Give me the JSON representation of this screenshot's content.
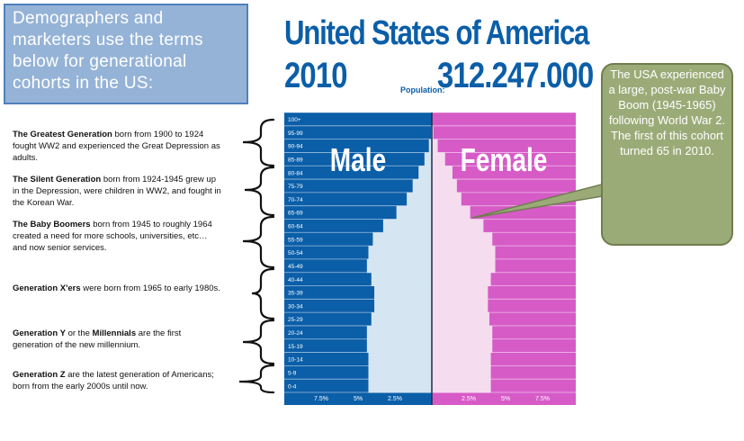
{
  "info_box": {
    "text": "Demographers and marketers use the terms below for generational cohorts in the US:"
  },
  "generations": [
    {
      "name": "The Greatest Generation",
      "desc": " born from 1900 to 1924 fought WW2 and experienced the Great Depression as adults."
    },
    {
      "name": "The Silent Generation",
      "desc": " born from 1924-1945 grew up in the Depression, were children in WW2, and fought in the Korean War."
    },
    {
      "name": "The Baby Boomers",
      "desc": " born from 1945 to roughly 1964 created a need for more schools, universities, etc…and now senior services."
    },
    {
      "name": "Generation X'ers",
      "desc": " were born from 1965 to early 1980s."
    },
    {
      "name_parts": [
        "Generation Y",
        " or the ",
        "Millennials",
        " are the first generation of the new millennium."
      ]
    },
    {
      "name": "Generation Z",
      "desc": " are the latest generation of Americans; born from the early 2000s until now."
    }
  ],
  "header": {
    "title": "United States of America",
    "year": "2010",
    "population_label": "Population:",
    "population_value": "312.247.000"
  },
  "callout": {
    "text": "The USA experienced a large, post-war Baby Boom (1945-1965) following World War 2. The first of this cohort turned 65 in 2010."
  },
  "colors": {
    "male": "#0b5ea8",
    "female": "#d65bc7",
    "male_bar": "#d5e6f2",
    "female_bar": "#f6dcef",
    "title": "#0b5ea8"
  },
  "chart_data": {
    "type": "bar",
    "orientation": "horizontal-population-pyramid",
    "male_label": "Male",
    "female_label": "Female",
    "categories": [
      "100+",
      "95-99",
      "90-94",
      "85-89",
      "80-84",
      "75-79",
      "70-74",
      "65-69",
      "60-64",
      "55-59",
      "50-54",
      "45-49",
      "40-44",
      "35-39",
      "30-34",
      "25-29",
      "20-24",
      "15-19",
      "10-14",
      "5-9",
      "0-4"
    ],
    "series": [
      {
        "name": "Male",
        "values": [
          0.0,
          0.05,
          0.2,
          0.5,
          0.9,
          1.3,
          1.7,
          2.4,
          3.3,
          4.0,
          4.3,
          4.4,
          4.1,
          3.9,
          3.9,
          4.1,
          4.4,
          4.4,
          4.3,
          4.3,
          4.3
        ]
      },
      {
        "name": "Female",
        "values": [
          0.0,
          0.1,
          0.4,
          0.9,
          1.4,
          1.7,
          2.0,
          2.6,
          3.5,
          4.1,
          4.3,
          4.3,
          4.0,
          3.8,
          3.8,
          3.9,
          4.1,
          4.1,
          4.0,
          4.0,
          4.0
        ]
      }
    ],
    "x_ticks": [
      "7.5%",
      "5%",
      "2.5%",
      "2.5%",
      "5%",
      "7.5%"
    ],
    "xlim": [
      -10,
      10
    ]
  }
}
